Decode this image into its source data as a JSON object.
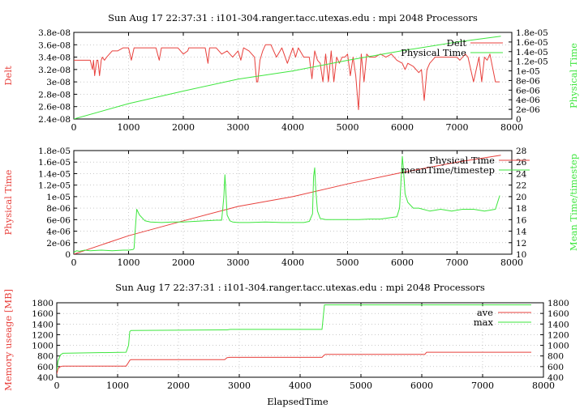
{
  "chart_data": [
    {
      "id": "panel1",
      "type": "line",
      "title": "Sun Aug 17 22:37:31 : i101-304.ranger.tacc.utexas.edu : mpi 2048 Processors",
      "xlabel": "",
      "ylabel": "Delt",
      "y2label": "Physical Time",
      "xlim": [
        0,
        8000
      ],
      "ylim": [
        2.4e-08,
        3.8e-08
      ],
      "y2lim": [
        0,
        1.8e-05
      ],
      "xticks": [
        "0",
        "1000",
        "2000",
        "3000",
        "4000",
        "5000",
        "6000",
        "7000",
        "8000"
      ],
      "yticks": [
        "2.4e-08",
        "2.6e-08",
        "2.8e-08",
        "3e-08",
        "3.2e-08",
        "3.4e-08",
        "3.6e-08",
        "3.8e-08"
      ],
      "y2ticks": [
        "0",
        "2e-06",
        "4e-06",
        "6e-06",
        "8e-06",
        "1e-05",
        "1.2e-05",
        "1.4e-05",
        "1.6e-05",
        "1.8e-05"
      ],
      "grid": true,
      "legend": "top-right",
      "series": [
        {
          "name": "Delt",
          "axis": "y",
          "color": "#e8403c",
          "x": [
            0,
            300,
            340,
            360,
            380,
            420,
            440,
            470,
            500,
            520,
            560,
            600,
            700,
            800,
            900,
            1000,
            1050,
            1100,
            1130,
            1200,
            1300,
            1400,
            1500,
            1560,
            1600,
            1640,
            1700,
            1800,
            1900,
            2000,
            2080,
            2100,
            2160,
            2200,
            2300,
            2400,
            2450,
            2480,
            2500,
            2550,
            2600,
            2700,
            2800,
            2900,
            3000,
            3050,
            3100,
            3200,
            3300,
            3340,
            3360,
            3400,
            3450,
            3500,
            3550,
            3600,
            3700,
            3800,
            3900,
            4000,
            4050,
            4100,
            4200,
            4300,
            4350,
            4400,
            4450,
            4500,
            4550,
            4600,
            4650,
            4700,
            4750,
            4800,
            4850,
            4900,
            4950,
            5000,
            5050,
            5100,
            5150,
            5200,
            5250,
            5300,
            5350,
            5400,
            5500,
            5600,
            5700,
            5800,
            5900,
            6000,
            6050,
            6100,
            6200,
            6300,
            6350,
            6400,
            6450,
            6500,
            6600,
            6700,
            6800,
            6900,
            7000,
            7050,
            7100,
            7150,
            7200,
            7300,
            7400,
            7450,
            7500,
            7550,
            7600,
            7700,
            7780
          ],
          "y": [
            3.35e-08,
            3.35e-08,
            3.2e-08,
            3.35e-08,
            3.1e-08,
            3.35e-08,
            3.35e-08,
            3.1e-08,
            3.35e-08,
            3.4e-08,
            3.35e-08,
            3.4e-08,
            3.5e-08,
            3.5e-08,
            3.55e-08,
            3.55e-08,
            3.35e-08,
            3.55e-08,
            3.55e-08,
            3.55e-08,
            3.55e-08,
            3.55e-08,
            3.55e-08,
            3.35e-08,
            3.55e-08,
            3.55e-08,
            3.55e-08,
            3.55e-08,
            3.55e-08,
            3.45e-08,
            3.5e-08,
            3.55e-08,
            3.55e-08,
            3.55e-08,
            3.55e-08,
            3.55e-08,
            3.3e-08,
            3.55e-08,
            3.55e-08,
            3.55e-08,
            3.55e-08,
            3.45e-08,
            3.5e-08,
            3.4e-08,
            3.5e-08,
            3.35e-08,
            3.55e-08,
            3.5e-08,
            3.4e-08,
            3e-08,
            3e-08,
            3.35e-08,
            3.5e-08,
            3.6e-08,
            3.6e-08,
            3.6e-08,
            3.4e-08,
            3.55e-08,
            3.3e-08,
            3.55e-08,
            3.4e-08,
            3.55e-08,
            3.4e-08,
            3.4e-08,
            3.05e-08,
            3.5e-08,
            3.35e-08,
            3.3e-08,
            3e-08,
            3.45e-08,
            3e-08,
            3.5e-08,
            3e-08,
            3.4e-08,
            3.3e-08,
            3.4e-08,
            3.4e-08,
            3.45e-08,
            3.1e-08,
            3.4e-08,
            3.1e-08,
            2.55e-08,
            3.45e-08,
            3e-08,
            3.45e-08,
            3.4e-08,
            3.4e-08,
            3.45e-08,
            3.4e-08,
            3.45e-08,
            3.35e-08,
            3.3e-08,
            3.2e-08,
            3.3e-08,
            3.25e-08,
            3.15e-08,
            3.2e-08,
            2.7e-08,
            3.2e-08,
            3.3e-08,
            3.4e-08,
            3.4e-08,
            3.4e-08,
            3.4e-08,
            3.4e-08,
            3.35e-08,
            3.4e-08,
            3.45e-08,
            3.4e-08,
            3e-08,
            3.4e-08,
            3e-08,
            3.4e-08,
            3.35e-08,
            3.45e-08,
            3e-08,
            3e-08
          ]
        },
        {
          "name": "Physical Time",
          "axis": "y2",
          "color": "#3ee63e",
          "x": [
            0,
            1000,
            2000,
            3000,
            4000,
            5000,
            6000,
            7000,
            7800
          ],
          "y": [
            0,
            3.2e-06,
            5.8e-06,
            8.3e-06,
            1e-05,
            1.22e-05,
            1.42e-05,
            1.6e-05,
            1.72e-05
          ]
        }
      ]
    },
    {
      "id": "panel2",
      "type": "line",
      "title": "",
      "xlabel": "",
      "ylabel": "Physical Time",
      "y2label": "Mean Time/timestep",
      "xlim": [
        0,
        8000
      ],
      "ylim": [
        0,
        1.8e-05
      ],
      "y2lim": [
        10,
        28
      ],
      "xticks": [
        "0",
        "1000",
        "2000",
        "3000",
        "4000",
        "5000",
        "6000",
        "7000",
        "8000"
      ],
      "yticks": [
        "0",
        "2e-06",
        "4e-06",
        "6e-06",
        "8e-06",
        "1e-05",
        "1.2e-05",
        "1.4e-05",
        "1.6e-05",
        "1.8e-05"
      ],
      "y2ticks": [
        "10",
        "12",
        "14",
        "16",
        "18",
        "20",
        "22",
        "24",
        "26",
        "28"
      ],
      "grid": true,
      "legend": "top-right",
      "series": [
        {
          "name": "Physical Time",
          "axis": "y",
          "color": "#e8403c",
          "x": [
            0,
            1000,
            2000,
            3000,
            4000,
            5000,
            6000,
            7000,
            7800
          ],
          "y": [
            0,
            3.2e-06,
            5.8e-06,
            8.3e-06,
            1e-05,
            1.22e-05,
            1.42e-05,
            1.6e-05,
            1.72e-05
          ]
        },
        {
          "name": "meanTime/timestep",
          "axis": "y2",
          "color": "#3ee63e",
          "x": [
            0,
            50,
            100,
            200,
            300,
            500,
            700,
            900,
            1000,
            1080,
            1100,
            1120,
            1150,
            1200,
            1300,
            1400,
            1600,
            1800,
            2000,
            2200,
            2400,
            2600,
            2700,
            2740,
            2760,
            2780,
            2800,
            2850,
            2900,
            3000,
            3200,
            3500,
            3800,
            4000,
            4200,
            4300,
            4360,
            4380,
            4400,
            4420,
            4450,
            4500,
            4600,
            4800,
            5000,
            5200,
            5400,
            5600,
            5900,
            5950,
            6000,
            6020,
            6050,
            6100,
            6200,
            6300,
            6500,
            6700,
            6900,
            7100,
            7300,
            7500,
            7700,
            7780
          ],
          "y": [
            10.3,
            10.6,
            10.5,
            10.7,
            10.6,
            10.7,
            10.6,
            10.7,
            10.7,
            10.8,
            11.0,
            14.0,
            17.8,
            16.8,
            15.8,
            15.6,
            15.5,
            15.6,
            15.6,
            15.7,
            15.8,
            15.9,
            15.9,
            20.0,
            23.8,
            20.5,
            16.8,
            15.8,
            15.6,
            15.5,
            15.5,
            15.6,
            15.5,
            15.5,
            15.5,
            15.7,
            17.0,
            23.5,
            25.0,
            21.0,
            17.5,
            16.2,
            16.0,
            16.0,
            16.0,
            16.0,
            16.1,
            16.1,
            16.5,
            18.0,
            27.0,
            25.0,
            20.5,
            19.0,
            18.0,
            18.0,
            17.5,
            17.8,
            17.5,
            17.8,
            17.8,
            17.5,
            17.8,
            20.2
          ]
        }
      ]
    },
    {
      "id": "panel3",
      "type": "line",
      "title": "Sun Aug 17 22:37:31 : i101-304.ranger.tacc.utexas.edu : mpi 2048 Processors",
      "xlabel": "ElapsedTime",
      "ylabel": "Memory useage [MB]",
      "y2label": "",
      "xlim": [
        0,
        8000
      ],
      "ylim": [
        400,
        1800
      ],
      "y2lim": [
        400,
        1800
      ],
      "xticks": [
        "0",
        "1000",
        "2000",
        "3000",
        "4000",
        "5000",
        "6000",
        "7000",
        "8000"
      ],
      "yticks": [
        "400",
        "600",
        "800",
        "1000",
        "1200",
        "1400",
        "1600",
        "1800"
      ],
      "y2ticks": [
        "400",
        "600",
        "800",
        "1000",
        "1200",
        "1400",
        "1600",
        "1800"
      ],
      "grid": true,
      "legend": "top-right",
      "series": [
        {
          "name": "ave",
          "axis": "y",
          "color": "#e8403c",
          "x": [
            0,
            20,
            60,
            100,
            1140,
            1180,
            1200,
            1220,
            2760,
            2800,
            2850,
            4360,
            4400,
            4420,
            6050,
            6080,
            7800
          ],
          "y": [
            460,
            560,
            600,
            610,
            610,
            680,
            720,
            730,
            730,
            770,
            775,
            775,
            820,
            830,
            830,
            870,
            870
          ]
        },
        {
          "name": "max",
          "axis": "y",
          "color": "#3ee63e",
          "x": [
            0,
            20,
            60,
            100,
            1140,
            1180,
            1200,
            1220,
            2760,
            2800,
            2850,
            4360,
            4400,
            4420,
            7800
          ],
          "y": [
            520,
            700,
            820,
            850,
            870,
            1000,
            1260,
            1280,
            1290,
            1290,
            1300,
            1300,
            1760,
            1760,
            1760
          ]
        }
      ]
    }
  ]
}
